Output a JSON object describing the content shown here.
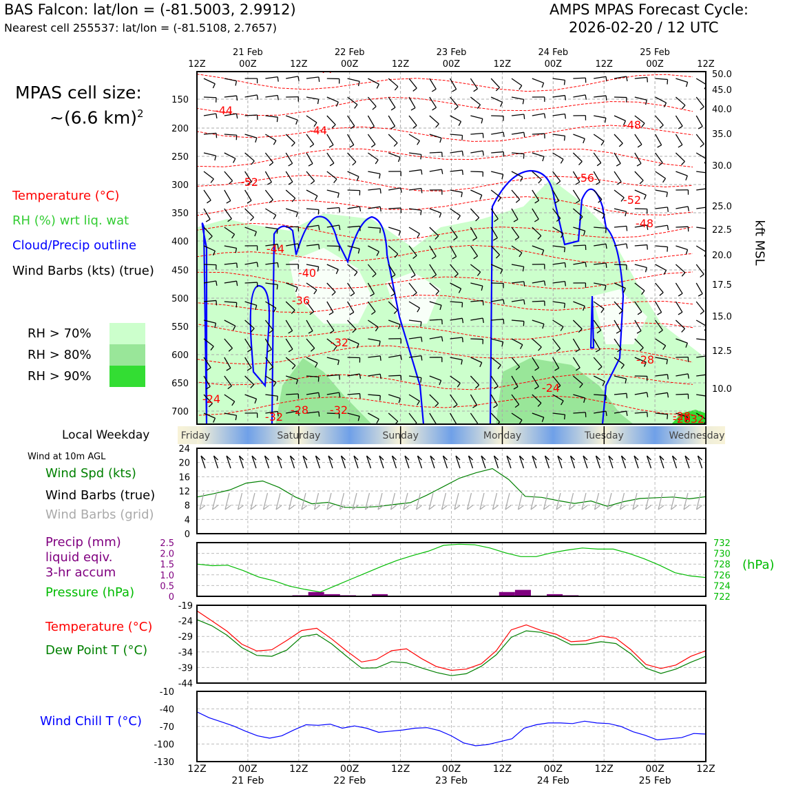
{
  "header": {
    "station_line": "BAS Falcon: lat/lon = (-81.5003, 2.9912)",
    "cell_line": "Nearest cell 255537: lat/lon = (-81.5108, 2.7657)",
    "cycle_title": "AMPS MPAS Forecast Cycle:",
    "cycle_value": "2026-02-20 / 12 UTC"
  },
  "side": {
    "cell_size_title": "MPAS cell size:",
    "cell_size_value": "~(6.6 km)",
    "cell_size_exp": "2",
    "legend_temperature": "Temperature (°C)",
    "legend_rh": "RH (%) wrt liq. wat",
    "legend_cloud": "Cloud/Precip outline",
    "legend_wind": "Wind Barbs (kts) (true)",
    "rh_levels": [
      "RH > 70%",
      "RH > 80%",
      "RH > 90%"
    ],
    "local_weekday": "Local Weekday",
    "wind_10m": "Wind at 10m AGL",
    "wind_spd": "Wind Spd (kts)",
    "wind_barbs_true": "Wind Barbs (true)",
    "wind_barbs_grid": "Wind Barbs (grid)",
    "precip_1": "Precip (mm)",
    "precip_2": "liquid eqiv.",
    "precip_3": "3-hr accum",
    "pressure": "Pressure (hPa)",
    "temp2": "Temperature (°C)",
    "dewpoint": "Dew Point T (°C)",
    "windchill": "Wind Chill T (°C)",
    "hpa_unit": "(hPa)",
    "kft_unit": "kft MSL"
  },
  "colors": {
    "temperature": "#ff0000",
    "rh_label": "#33cc33",
    "cloud": "#0000ff",
    "rh70": "#ccffcc",
    "rh80": "#99e699",
    "rh90": "#33dd33",
    "wind_spd": "#008000",
    "wind_grid": "#aaaaaa",
    "precip": "#800080",
    "pressure": "#00bb00",
    "dewpoint": "#008000",
    "windchill": "#0000ff"
  },
  "chart_data": {
    "type": "line",
    "x_ticks_hours": [
      "12Z",
      "00Z",
      "12Z",
      "00Z",
      "12Z",
      "00Z",
      "12Z",
      "00Z",
      "12Z",
      "00Z",
      "12Z"
    ],
    "x_dates": [
      "21 Feb",
      "22 Feb",
      "23 Feb",
      "24 Feb",
      "25 Feb"
    ],
    "weekdays": [
      "Friday",
      "Saturday",
      "Sunday",
      "Monday",
      "Tuesday",
      "Wednesday"
    ],
    "cross_section": {
      "y_axis_hpa": [
        "150",
        "200",
        "250",
        "300",
        "350",
        "400",
        "450",
        "500",
        "550",
        "600",
        "650",
        "700"
      ],
      "y_axis_kft": [
        "50.0",
        "45.0",
        "40.0",
        "35.0",
        "30.0",
        "25.0",
        "22.5",
        "20.0",
        "17.5",
        "15.0",
        "12.5",
        "10.0"
      ],
      "temperature_contour_labels": [
        "-44",
        "-44",
        "-44",
        "-48",
        "-52",
        "-56",
        "-52",
        "-48",
        "-44",
        "-40",
        "-36",
        "-32",
        "-28",
        "-24",
        "-28",
        "-32",
        "-32",
        "-28",
        "-24",
        "-28",
        "-32"
      ]
    },
    "wind_speed": {
      "yticks": [
        "0",
        "4",
        "8",
        "12",
        "16",
        "20",
        "24"
      ],
      "ylim": [
        0,
        24
      ],
      "values": [
        10.3,
        11.2,
        12.3,
        14.2,
        14.8,
        13.0,
        10.3,
        8.4,
        8.8,
        7.4,
        7.4,
        7.6,
        8.2,
        8.7,
        10.8,
        13.2,
        15.6,
        17.1,
        18.3,
        15.2,
        10.5,
        10.2,
        9.3,
        8.5,
        9.2,
        7.7,
        9.0,
        9.9,
        10.1,
        10.3,
        9.8,
        10.4
      ]
    },
    "precip_mm": {
      "yticks": [
        "0",
        "0.5",
        "1.0",
        "1.5",
        "2.0",
        "2.5"
      ],
      "ylim": [
        0,
        2.5
      ],
      "values": [
        0,
        0,
        0,
        0,
        0,
        0,
        0.05,
        0.2,
        0.1,
        0.05,
        0,
        0.1,
        0,
        0,
        0,
        0,
        0,
        0,
        0,
        0.2,
        0.3,
        0,
        0.1,
        0.05,
        0,
        0,
        0,
        0,
        0,
        0,
        0,
        0
      ]
    },
    "pressure_hpa": {
      "yticks": [
        "722",
        "724",
        "726",
        "728",
        "730",
        "732"
      ],
      "ylim": [
        722,
        732
      ],
      "values": [
        728.0,
        727.7,
        727.8,
        726.8,
        725.6,
        724.9,
        723.9,
        723.3,
        722.8,
        724.0,
        725.2,
        726.4,
        727.6,
        728.7,
        729.6,
        730.4,
        731.5,
        731.7,
        731.6,
        731.0,
        730.1,
        729.4,
        729.4,
        730.1,
        730.6,
        731.0,
        730.8,
        730.8,
        730.0,
        729.0,
        727.8,
        726.4,
        725.8,
        725.5
      ]
    },
    "temperature": {
      "yticks": [
        "-19",
        "-24",
        "-29",
        "-34",
        "-39",
        "-44"
      ],
      "ylim": [
        -44,
        -19
      ],
      "temp": [
        -20.8,
        -24.0,
        -27.3,
        -31.5,
        -33.7,
        -33.3,
        -30.3,
        -27.1,
        -26.4,
        -29.8,
        -33.7,
        -37.2,
        -36.4,
        -33.6,
        -33.0,
        -36.1,
        -38.7,
        -39.9,
        -39.5,
        -37.8,
        -33.6,
        -26.9,
        -25.3,
        -27.1,
        -28.3,
        -30.7,
        -30.4,
        -28.9,
        -29.6,
        -33.3,
        -38.0,
        -39.3,
        -38.2,
        -35.4,
        -33.6
      ],
      "dew": [
        -23.6,
        -25.6,
        -28.6,
        -32.6,
        -35.1,
        -35.4,
        -33.4,
        -29.1,
        -28.3,
        -31.4,
        -35.4,
        -39.2,
        -39.1,
        -37.1,
        -37.5,
        -39.1,
        -40.6,
        -41.6,
        -41.0,
        -38.6,
        -34.9,
        -29.3,
        -27.2,
        -27.7,
        -29.3,
        -31.7,
        -31.5,
        -30.7,
        -31.3,
        -34.6,
        -39.2,
        -40.9,
        -39.5,
        -37.3,
        -35.4
      ]
    },
    "windchill": {
      "yticks": [
        "-10",
        "-40",
        "-70",
        "-100",
        "-130"
      ],
      "ylim": [
        -130,
        -10
      ],
      "values": [
        -45,
        -55,
        -62,
        -69,
        -78,
        -86,
        -90,
        -86,
        -76,
        -67,
        -68,
        -66,
        -73,
        -69,
        -73,
        -80,
        -78,
        -76,
        -73,
        -72,
        -77,
        -86,
        -98,
        -103,
        -101,
        -96,
        -91,
        -73,
        -67,
        -64,
        -64,
        -65,
        -61,
        -64,
        -65,
        -70,
        -79,
        -85,
        -93,
        -91,
        -89,
        -82,
        -83
      ]
    }
  }
}
